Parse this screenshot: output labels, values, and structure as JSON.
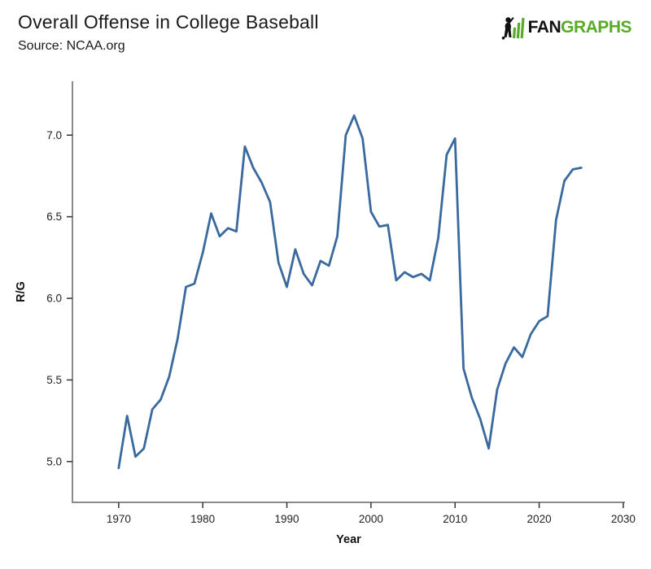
{
  "header": {
    "title": "Overall Offense in College Baseball",
    "source": "Source: NCAA.org",
    "logo": {
      "fan": "FAN",
      "graphs": "GRAPHS",
      "fan_color": "#111111",
      "graphs_color": "#57AB27",
      "icon": "fangraphs-batter-icon"
    }
  },
  "chart_data": {
    "type": "line",
    "title": "Overall Offense in College Baseball",
    "subtitle": "Source: NCAA.org",
    "xlabel": "Year",
    "ylabel": "R/G",
    "x_ticks": [
      1970,
      1980,
      1990,
      2000,
      2010,
      2020,
      2030
    ],
    "y_ticks": [
      5.0,
      5.5,
      6.0,
      6.5,
      7.0
    ],
    "xlim": [
      1964.5,
      2030.2
    ],
    "ylim": [
      4.75,
      7.33
    ],
    "grid": false,
    "legend": "none",
    "line_color": "#3A699E",
    "axis_color": "#8A8A8A",
    "tick_color": "#333333",
    "tick_label_color": "#222222",
    "series": [
      {
        "name": "R/G",
        "x": [
          1970,
          1971,
          1972,
          1973,
          1974,
          1975,
          1976,
          1977,
          1978,
          1979,
          1980,
          1981,
          1982,
          1983,
          1984,
          1985,
          1986,
          1987,
          1988,
          1989,
          1990,
          1991,
          1992,
          1993,
          1994,
          1995,
          1996,
          1997,
          1998,
          1999,
          2000,
          2001,
          2002,
          2003,
          2004,
          2005,
          2006,
          2007,
          2008,
          2009,
          2010,
          2011,
          2012,
          2013,
          2014,
          2015,
          2016,
          2017,
          2018,
          2019,
          2020,
          2021,
          2022,
          2023,
          2024,
          2025
        ],
        "values": [
          4.96,
          5.28,
          5.03,
          5.08,
          5.32,
          5.38,
          5.52,
          5.75,
          6.07,
          6.09,
          6.28,
          6.52,
          6.38,
          6.43,
          6.41,
          6.93,
          6.8,
          6.71,
          6.59,
          6.22,
          6.07,
          6.3,
          6.15,
          6.08,
          6.23,
          6.2,
          6.38,
          7.0,
          7.12,
          6.98,
          6.53,
          6.44,
          6.45,
          6.11,
          6.16,
          6.13,
          6.15,
          6.11,
          6.37,
          6.88,
          6.98,
          5.57,
          5.39,
          5.26,
          5.08,
          5.44,
          5.6,
          5.7,
          5.64,
          5.78,
          5.86,
          5.89,
          6.48,
          6.72,
          6.79,
          6.8
        ]
      }
    ]
  }
}
